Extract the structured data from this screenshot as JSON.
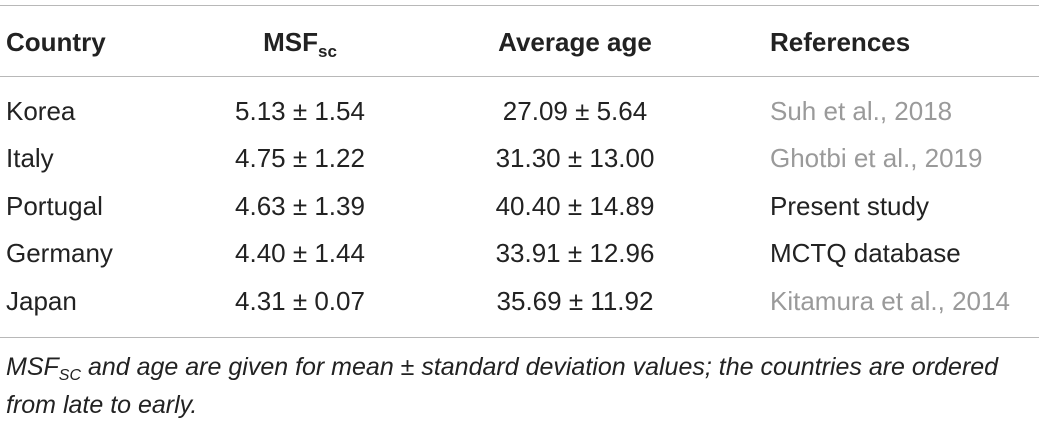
{
  "table": {
    "headers": {
      "country": "Country",
      "msf_main": "MSF",
      "msf_sub": "sc",
      "age": "Average age",
      "references": "References"
    },
    "rows": [
      {
        "country": "Korea",
        "msf": "5.13 ± 1.54",
        "age": "27.09 ± 5.64",
        "reference": "Suh et al., 2018",
        "reference_is_link": true
      },
      {
        "country": "Italy",
        "msf": "4.75 ± 1.22",
        "age": "31.30 ± 13.00",
        "reference": "Ghotbi et al., 2019",
        "reference_is_link": true
      },
      {
        "country": "Portugal",
        "msf": "4.63 ± 1.39",
        "age": "40.40 ± 14.89",
        "reference": "Present study",
        "reference_is_link": false
      },
      {
        "country": "Germany",
        "msf": "4.40 ± 1.44",
        "age": "33.91 ± 12.96",
        "reference": "MCTQ database",
        "reference_is_link": false
      },
      {
        "country": "Japan",
        "msf": "4.31 ± 0.07",
        "age": "35.69 ± 11.92",
        "reference": "Kitamura et al., 2014",
        "reference_is_link": true
      }
    ]
  },
  "footnote": {
    "main": "MSF",
    "sub": "SC",
    "rest": " and age are given for mean ± standard deviation values; the countries are ordered from late to early."
  },
  "colors": {
    "text": "#222222",
    "link": "#9a9a9a",
    "rule": "#b8b8b8"
  }
}
